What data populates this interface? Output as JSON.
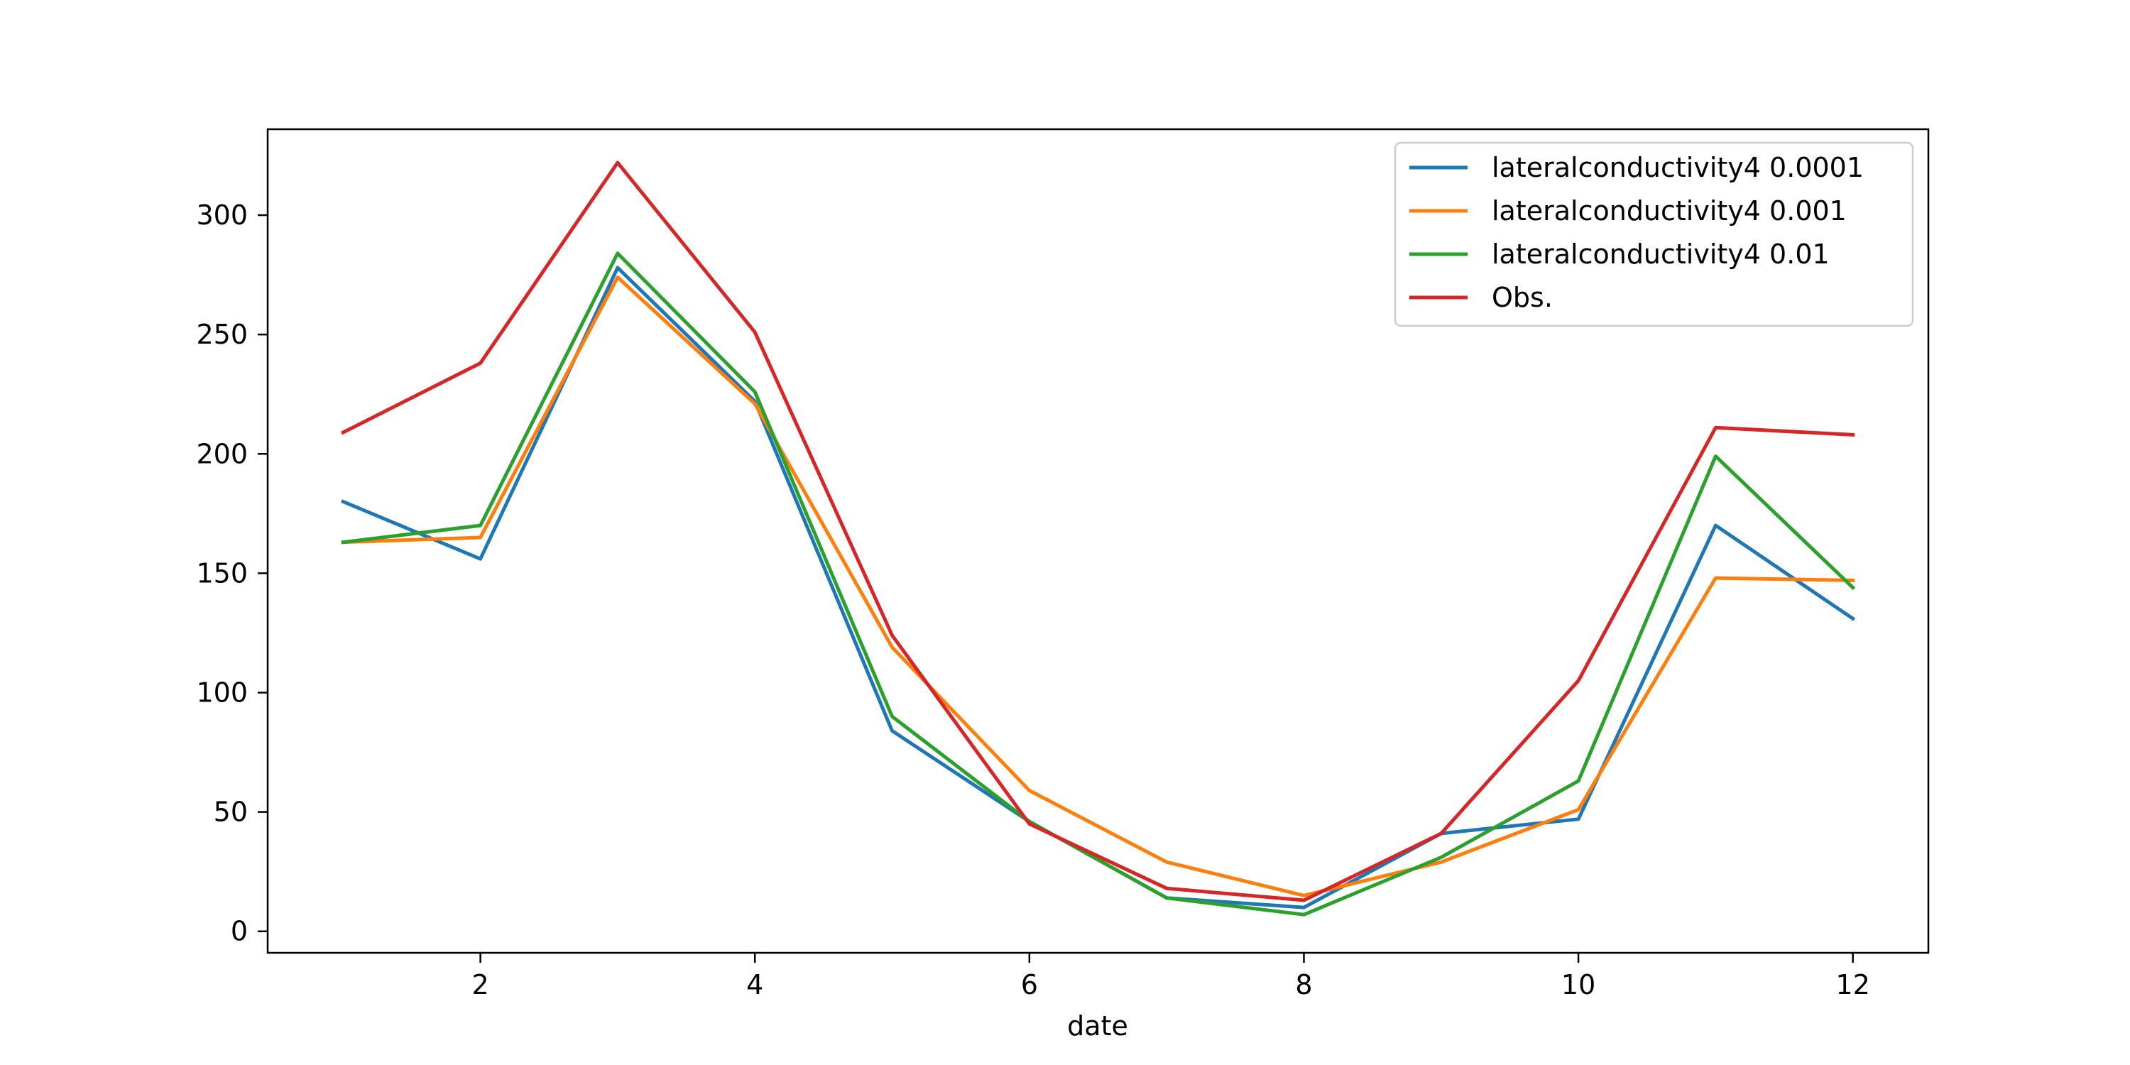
{
  "chart_data": {
    "type": "line",
    "title": "",
    "xlabel": "date",
    "ylabel": "",
    "xlim": [
      0.45,
      12.55
    ],
    "ylim": [
      -9,
      336
    ],
    "xticks": [
      2,
      4,
      6,
      8,
      10,
      12
    ],
    "yticks": [
      0,
      50,
      100,
      150,
      200,
      250,
      300
    ],
    "grid": false,
    "legend_position": "top-right",
    "x": [
      1,
      2,
      3,
      4,
      5,
      6,
      7,
      8,
      9,
      10,
      11,
      12
    ],
    "series": [
      {
        "name": "lateralconductivity4 0.0001",
        "color": "#1f77b4",
        "values": [
          180,
          156,
          278,
          222,
          84,
          46,
          14,
          10,
          41,
          47,
          170,
          131
        ]
      },
      {
        "name": "lateralconductivity4 0.001",
        "color": "#ff7f0e",
        "values": [
          163,
          165,
          274,
          221,
          119,
          59,
          29,
          15,
          29,
          51,
          148,
          147
        ]
      },
      {
        "name": "lateralconductivity4 0.01",
        "color": "#2ca02c",
        "values": [
          163,
          170,
          284,
          226,
          90,
          46,
          14,
          7,
          31,
          63,
          199,
          144
        ]
      },
      {
        "name": "Obs.",
        "color": "#d62728",
        "values": [
          209,
          238,
          322,
          251,
          124,
          45,
          18,
          13,
          41,
          105,
          211,
          208
        ]
      }
    ]
  }
}
